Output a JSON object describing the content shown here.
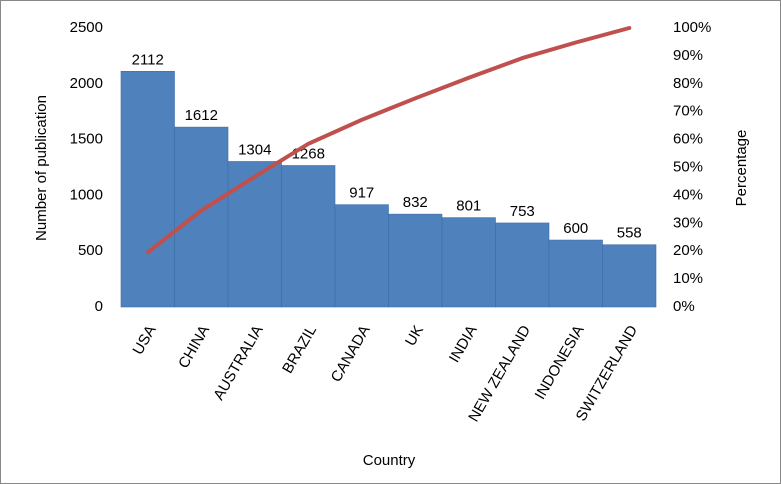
{
  "chart_data": {
    "type": "pareto",
    "x_label": "Country",
    "y_label": "Number of publication",
    "y2_label": "Percentage",
    "categories": [
      "USA",
      "CHINA",
      "AUSTRALIA",
      "BRAZIL",
      "CANADA",
      "UK",
      "INDIA",
      "NEW ZEALAND",
      "INDONESIA",
      "SWITZERLAND"
    ],
    "series": [
      {
        "name": "Number of publication",
        "type": "bar",
        "color": "#4f81bd",
        "values": [
          2112,
          1612,
          1304,
          1268,
          917,
          832,
          801,
          753,
          600,
          558
        ]
      },
      {
        "name": "Percentage",
        "type": "line",
        "axis": "y2",
        "color": "#c0504d",
        "values": [
          19.6,
          34.6,
          46.7,
          58.5,
          67.1,
          74.8,
          82.2,
          89.2,
          94.8,
          100
        ]
      }
    ],
    "ylim": [
      0,
      2500
    ],
    "yticks": [
      0,
      500,
      1000,
      1500,
      2000,
      2500
    ],
    "y2lim": [
      0,
      100
    ],
    "y2ticks": [
      {
        "value": 0,
        "label": "0%"
      },
      {
        "value": 10,
        "label": "10%"
      },
      {
        "value": 20,
        "label": "20%"
      },
      {
        "value": 30,
        "label": "30%"
      },
      {
        "value": 40,
        "label": "40%"
      },
      {
        "value": 50,
        "label": "50%"
      },
      {
        "value": 60,
        "label": "60%"
      },
      {
        "value": 70,
        "label": "70%"
      },
      {
        "value": 80,
        "label": "80%"
      },
      {
        "value": 90,
        "label": "90%"
      },
      {
        "value": 100,
        "label": "100%"
      }
    ],
    "grid": false
  }
}
